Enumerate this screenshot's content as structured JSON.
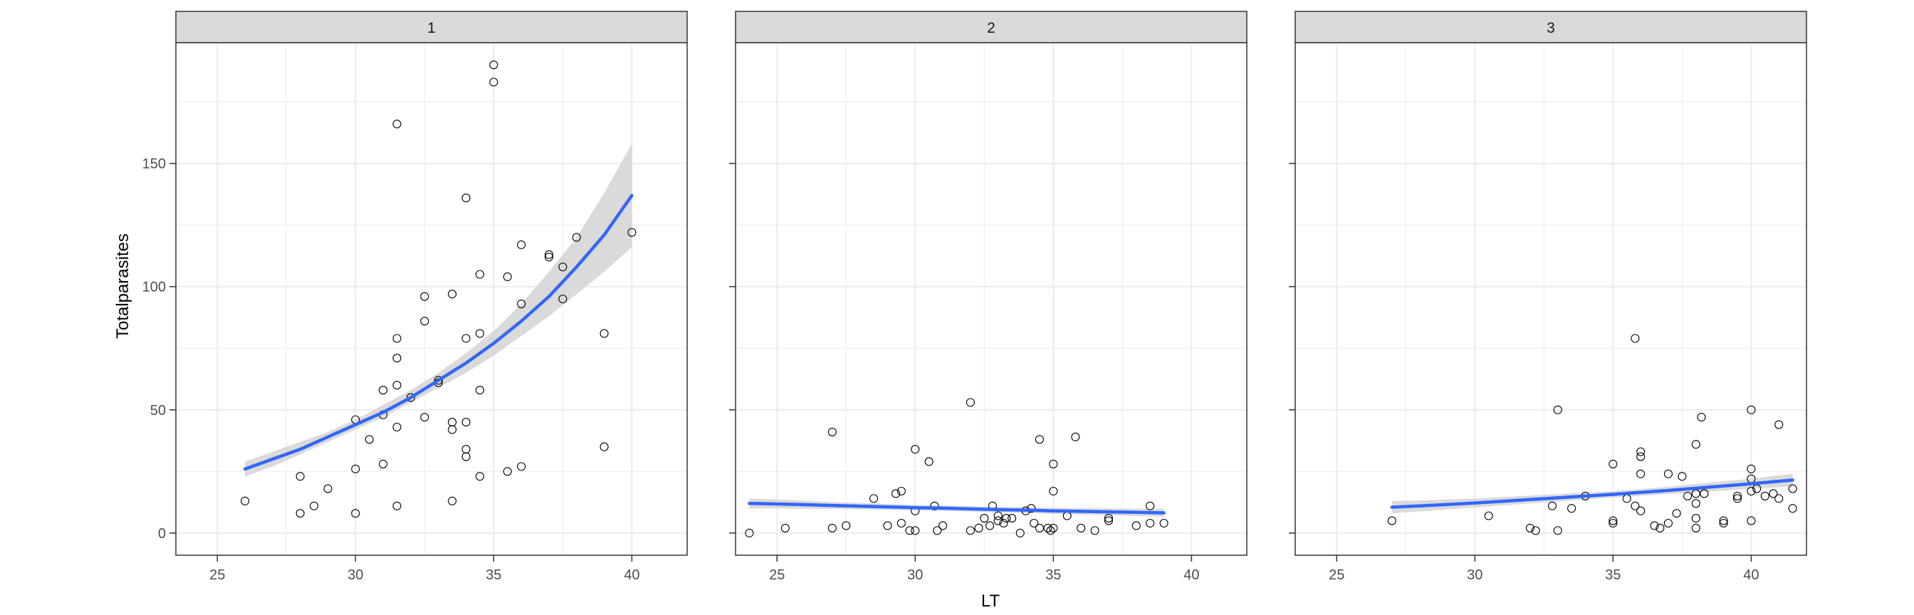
{
  "chart_data": {
    "type": "scatter",
    "xlabel": "LT",
    "ylabel": "Totalparasites",
    "xlim": [
      23.5,
      42
    ],
    "ylim": [
      -9,
      199
    ],
    "x_ticks": [
      25,
      30,
      35,
      40
    ],
    "y_ticks": [
      0,
      50,
      100,
      150
    ],
    "grid": true,
    "panels": [
      {
        "label": "1",
        "points": [
          [
            26,
            13
          ],
          [
            28,
            8
          ],
          [
            28,
            23
          ],
          [
            28.5,
            11
          ],
          [
            29,
            18
          ],
          [
            30,
            8
          ],
          [
            30,
            26
          ],
          [
            30,
            46
          ],
          [
            30.5,
            38
          ],
          [
            31,
            58
          ],
          [
            31,
            28
          ],
          [
            31,
            48
          ],
          [
            31.5,
            166
          ],
          [
            31.5,
            79
          ],
          [
            31.5,
            71
          ],
          [
            31.5,
            60
          ],
          [
            31.5,
            43
          ],
          [
            31.5,
            11
          ],
          [
            32,
            55
          ],
          [
            32.5,
            96
          ],
          [
            32.5,
            86
          ],
          [
            32.5,
            47
          ],
          [
            33,
            62
          ],
          [
            33,
            61
          ],
          [
            33.5,
            97
          ],
          [
            33.5,
            45
          ],
          [
            33.5,
            42
          ],
          [
            33.5,
            13
          ],
          [
            34,
            136
          ],
          [
            34,
            79
          ],
          [
            34,
            45
          ],
          [
            34,
            34
          ],
          [
            34,
            31
          ],
          [
            34.5,
            105
          ],
          [
            34.5,
            81
          ],
          [
            34.5,
            58
          ],
          [
            34.5,
            23
          ],
          [
            35,
            190
          ],
          [
            35,
            183
          ],
          [
            35.5,
            104
          ],
          [
            35.5,
            25
          ],
          [
            36,
            117
          ],
          [
            36,
            93
          ],
          [
            36,
            27
          ],
          [
            37,
            113
          ],
          [
            37,
            112
          ],
          [
            37.5,
            108
          ],
          [
            37.5,
            95
          ],
          [
            38,
            120
          ],
          [
            39,
            81
          ],
          [
            39,
            35
          ],
          [
            40,
            122
          ]
        ],
        "fit": {
          "x": [
            26,
            27,
            28,
            29,
            30,
            31,
            32,
            33,
            34,
            35,
            36,
            37,
            38,
            39,
            40
          ],
          "y": [
            26,
            30,
            34,
            39,
            44,
            49,
            55,
            62,
            69,
            77,
            86,
            96,
            108,
            121,
            137
          ],
          "lower": [
            23,
            27,
            32,
            37,
            42,
            47,
            53,
            59,
            65,
            72,
            80,
            88,
            97,
            106,
            116
          ],
          "upper": [
            29,
            33,
            37,
            41,
            46,
            52,
            58,
            65,
            73,
            82,
            93,
            106,
            120,
            138,
            158
          ]
        }
      },
      {
        "label": "2",
        "points": [
          [
            24,
            0
          ],
          [
            25.3,
            2
          ],
          [
            27,
            41
          ],
          [
            27,
            2
          ],
          [
            27.5,
            3
          ],
          [
            28.5,
            14
          ],
          [
            29,
            3
          ],
          [
            29.3,
            16
          ],
          [
            29.5,
            17
          ],
          [
            29.5,
            4
          ],
          [
            29.8,
            1
          ],
          [
            30,
            34
          ],
          [
            30,
            9
          ],
          [
            30,
            1
          ],
          [
            30.5,
            29
          ],
          [
            30.7,
            11
          ],
          [
            30.8,
            1
          ],
          [
            31,
            3
          ],
          [
            32,
            53
          ],
          [
            32,
            1
          ],
          [
            32.3,
            2
          ],
          [
            32.5,
            6
          ],
          [
            32.7,
            3
          ],
          [
            32.8,
            11
          ],
          [
            33,
            7
          ],
          [
            33,
            5
          ],
          [
            33.2,
            4
          ],
          [
            33.3,
            6
          ],
          [
            33.5,
            6
          ],
          [
            33.8,
            0
          ],
          [
            34,
            9
          ],
          [
            34.2,
            10
          ],
          [
            34.3,
            4
          ],
          [
            34.5,
            38
          ],
          [
            34.5,
            2
          ],
          [
            34.8,
            2
          ],
          [
            34.9,
            1
          ],
          [
            35,
            28
          ],
          [
            35,
            17
          ],
          [
            35,
            2
          ],
          [
            35.5,
            7
          ],
          [
            35.8,
            39
          ],
          [
            36,
            2
          ],
          [
            36.5,
            1
          ],
          [
            37,
            6
          ],
          [
            37,
            5
          ],
          [
            38,
            3
          ],
          [
            38.5,
            11
          ],
          [
            38.5,
            4
          ],
          [
            39,
            4
          ]
        ],
        "fit": {
          "x": [
            24,
            25,
            26,
            27,
            28,
            29,
            30,
            31,
            32,
            33,
            34,
            35,
            36,
            37,
            38,
            39
          ],
          "y": [
            12,
            11.8,
            11.5,
            11.2,
            10.9,
            10.6,
            10.3,
            10.1,
            9.8,
            9.5,
            9.3,
            9,
            8.8,
            8.6,
            8.4,
            8.2
          ],
          "lower": [
            10,
            10,
            9.9,
            9.8,
            9.6,
            9.4,
            9.2,
            9,
            8.7,
            8.4,
            8.1,
            7.8,
            7.5,
            7.2,
            6.9,
            6.6
          ],
          "upper": [
            14,
            13.6,
            13.1,
            12.6,
            12.2,
            11.8,
            11.4,
            11.2,
            10.9,
            10.6,
            10.5,
            10.2,
            10.1,
            10,
            9.9,
            9.8
          ]
        }
      },
      {
        "label": "3",
        "points": [
          [
            27,
            5
          ],
          [
            30.5,
            7
          ],
          [
            32,
            2
          ],
          [
            32.2,
            1
          ],
          [
            32.8,
            11
          ],
          [
            33,
            50
          ],
          [
            33,
            1
          ],
          [
            33.5,
            10
          ],
          [
            34,
            15
          ],
          [
            35,
            28
          ],
          [
            35,
            5
          ],
          [
            35,
            4
          ],
          [
            35.5,
            14
          ],
          [
            35.8,
            79
          ],
          [
            35.8,
            11
          ],
          [
            36,
            33
          ],
          [
            36,
            31
          ],
          [
            36,
            24
          ],
          [
            36,
            9
          ],
          [
            36.5,
            3
          ],
          [
            36.7,
            2
          ],
          [
            37,
            24
          ],
          [
            37,
            4
          ],
          [
            37.3,
            8
          ],
          [
            37.5,
            23
          ],
          [
            37.7,
            15
          ],
          [
            38,
            36
          ],
          [
            38,
            16
          ],
          [
            38,
            12
          ],
          [
            38,
            6
          ],
          [
            38,
            2
          ],
          [
            38.2,
            47
          ],
          [
            38.3,
            16
          ],
          [
            39,
            5
          ],
          [
            39,
            4
          ],
          [
            39.5,
            15
          ],
          [
            39.5,
            14
          ],
          [
            40,
            50
          ],
          [
            40,
            26
          ],
          [
            40,
            22
          ],
          [
            40,
            17
          ],
          [
            40,
            5
          ],
          [
            40.2,
            18
          ],
          [
            40.5,
            15
          ],
          [
            40.8,
            16
          ],
          [
            41,
            44
          ],
          [
            41,
            14
          ],
          [
            41.5,
            18
          ],
          [
            41.5,
            10
          ]
        ],
        "fit": {
          "x": [
            27,
            28,
            29,
            30,
            31,
            32,
            33,
            34,
            35,
            36,
            37,
            38,
            39,
            40,
            41,
            41.5
          ],
          "y": [
            10.5,
            11,
            11.6,
            12.2,
            12.9,
            13.6,
            14.3,
            15,
            15.7,
            16.5,
            17.3,
            18.2,
            19.1,
            20,
            21,
            21.5
          ],
          "lower": [
            8,
            8.8,
            9.6,
            10.4,
            11.2,
            12,
            12.8,
            13.6,
            14.4,
            15.1,
            15.8,
            16.5,
            17.2,
            17.9,
            18.6,
            19
          ],
          "upper": [
            13,
            13.2,
            13.6,
            14,
            14.6,
            15.2,
            15.8,
            16.4,
            17,
            17.9,
            18.8,
            19.9,
            21,
            22.1,
            23.4,
            24
          ]
        }
      }
    ]
  },
  "colors": {
    "fit_line": "#3366FF",
    "ribbon": "#D3D3D3",
    "strip_fill": "#D9D9D9",
    "grid": "#EBEBEB",
    "panel_border": "#333333",
    "point_stroke": "#000000"
  }
}
